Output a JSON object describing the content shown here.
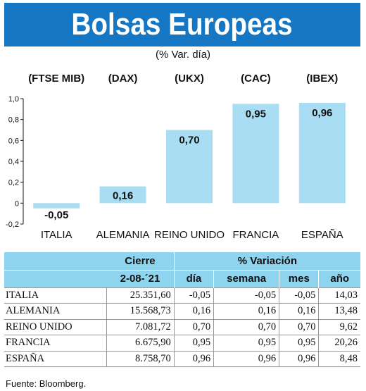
{
  "title": "Bolsas Europeas",
  "subtitle": "(% Var. día)",
  "colors": {
    "title_bg": "#1576c4",
    "bar": "#a8ddf3",
    "header_bg": "#8fd4ef"
  },
  "chart_data": {
    "type": "bar",
    "categories": [
      "ITALIA",
      "ALEMANIA",
      "REINO UNIDO",
      "FRANCIA",
      "ESPAÑA"
    ],
    "index_labels": [
      "(FTSE MIB)",
      "(DAX)",
      "(UKX)",
      "(CAC)",
      "(IBEX)"
    ],
    "values": [
      -0.05,
      0.16,
      0.7,
      0.95,
      0.96
    ],
    "value_labels": [
      "-0,05",
      "0,16",
      "0,70",
      "0,95",
      "0,96"
    ],
    "ylim": [
      -0.2,
      1.0
    ],
    "yticks": [
      -0.2,
      0,
      0.2,
      0.4,
      0.6,
      0.8,
      1.0
    ],
    "ytick_labels": [
      "-0,2",
      "0",
      "0,2",
      "0,4",
      "0,6",
      "0,8",
      "1,0"
    ],
    "xlabel": "",
    "ylabel": "",
    "grid": false
  },
  "table": {
    "header_cierre": "Cierre",
    "header_date": "2-08-´21",
    "header_variacion": "% Variación",
    "columns": [
      "día",
      "semana",
      "mes",
      "año"
    ],
    "rows": [
      {
        "name": "ITALIA",
        "cierre": "25.351,60",
        "dia": "-0,05",
        "semana": "-0,05",
        "mes": "-0,05",
        "anio": "14,03"
      },
      {
        "name": "ALEMANIA",
        "cierre": "15.568,73",
        "dia": "0,16",
        "semana": "0,16",
        "mes": "0,16",
        "anio": "13,48"
      },
      {
        "name": "REINO UNIDO",
        "cierre": "7.081,72",
        "dia": "0,70",
        "semana": "0,70",
        "mes": "0,70",
        "anio": "9,62"
      },
      {
        "name": "FRANCIA",
        "cierre": "6.675,90",
        "dia": "0,95",
        "semana": "0,95",
        "mes": "0,95",
        "anio": "20,26"
      },
      {
        "name": "ESPAÑA",
        "cierre": "8.758,70",
        "dia": "0,96",
        "semana": "0,96",
        "mes": "0,96",
        "anio": "8,48"
      }
    ]
  },
  "source": "Fuente: Bloomberg."
}
